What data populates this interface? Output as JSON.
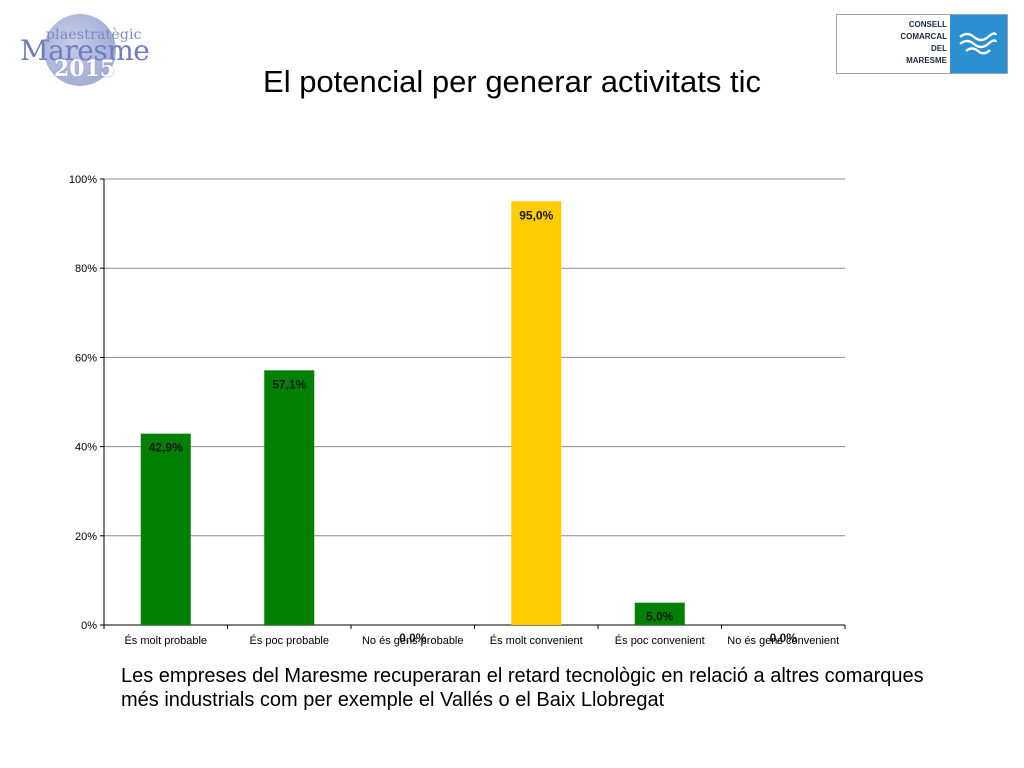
{
  "header": {
    "title": "El potencial per generar activitats tic",
    "logo_left": {
      "line1": "plaestratègic",
      "line2": "Maresme",
      "line3": "2015"
    },
    "logo_right": {
      "lines": [
        "CONSELL",
        "COMARCAL",
        "DEL",
        "MARESME"
      ]
    }
  },
  "chart_data": {
    "type": "bar",
    "categories": [
      "És molt probable",
      "És poc probable",
      "No és gens probable",
      "És molt convenient",
      "És poc convenient",
      "No és gens convenient"
    ],
    "values": [
      42.9,
      57.1,
      0.0,
      95.0,
      5.0,
      0.0
    ],
    "labels": [
      "42,9%",
      "57,1%",
      "0,0%",
      "95,0%",
      "5,0%",
      "0,0%"
    ],
    "colors": [
      "#008000",
      "#008000",
      "#008000",
      "#ffcc00",
      "#008000",
      "#008000"
    ],
    "yticks": [
      "0%",
      "20%",
      "40%",
      "60%",
      "80%",
      "100%"
    ],
    "ylim": [
      0,
      100
    ],
    "grid": true,
    "title": "",
    "xlabel": "",
    "ylabel": ""
  },
  "caption": "Les empreses del Maresme recuperaran el retard tecnològic en relació a altres comarques més industrials com per exemple el Vallés o el Baix Llobregat"
}
